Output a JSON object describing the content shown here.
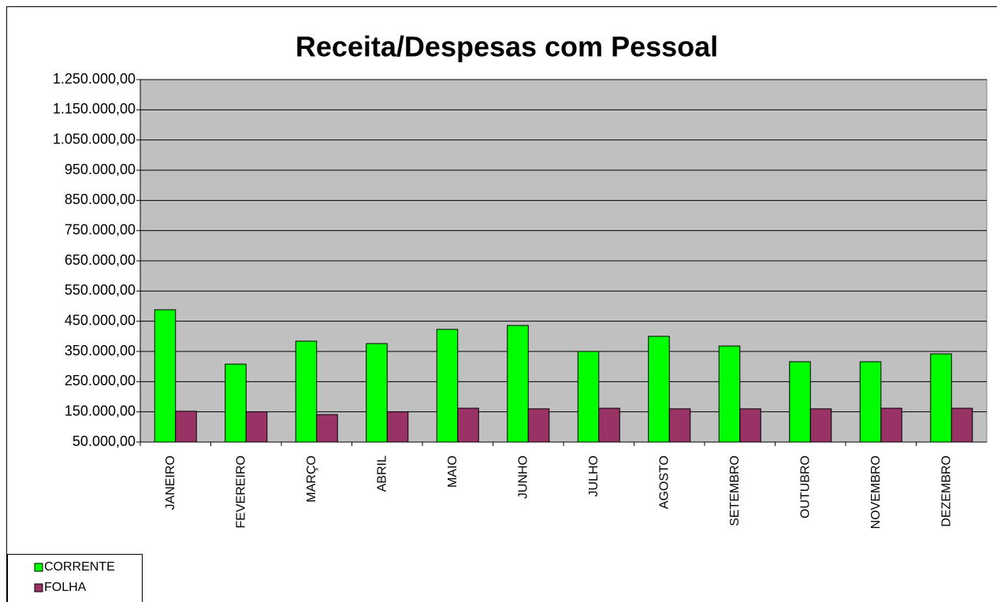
{
  "chart_data": {
    "type": "bar",
    "title": "Receita/Despesas com Pessoal",
    "categories": [
      "JANEIRO",
      "FEVEREIRO",
      "MARÇO",
      "ABRIL",
      "MAIO",
      "JUNHO",
      "JULHO",
      "AGOSTO",
      "SETEMBRO",
      "OUTUBRO",
      "NOVEMBRO",
      "DEZEMBRO"
    ],
    "series": [
      {
        "name": "CORRENTE",
        "color": "#00ff00",
        "values": [
          488000,
          308000,
          384000,
          376000,
          423000,
          436000,
          350000,
          400000,
          368000,
          316000,
          316000,
          342000
        ]
      },
      {
        "name": "FOLHA",
        "color": "#993366",
        "values": [
          152000,
          150000,
          141000,
          150000,
          162000,
          160000,
          162000,
          160000,
          160000,
          160000,
          162000,
          162000
        ]
      }
    ],
    "ylim": [
      50000,
      1250000
    ],
    "yticks": [
      {
        "value": 50000,
        "label": "50.000,00"
      },
      {
        "value": 150000,
        "label": "150.000,00"
      },
      {
        "value": 250000,
        "label": "250.000,00"
      },
      {
        "value": 350000,
        "label": "350.000,00"
      },
      {
        "value": 450000,
        "label": "450.000,00"
      },
      {
        "value": 550000,
        "label": "550.000,00"
      },
      {
        "value": 650000,
        "label": "650.000,00"
      },
      {
        "value": 750000,
        "label": "750.000,00"
      },
      {
        "value": 850000,
        "label": "850.000,00"
      },
      {
        "value": 950000,
        "label": "950.000,00"
      },
      {
        "value": 1050000,
        "label": "1.050.000,00"
      },
      {
        "value": 1150000,
        "label": "1.150.000,00"
      },
      {
        "value": 1250000,
        "label": "1.250.000,00"
      }
    ],
    "grid": true,
    "plot_background": "#c0c0c0",
    "legend": "bottom-left"
  }
}
